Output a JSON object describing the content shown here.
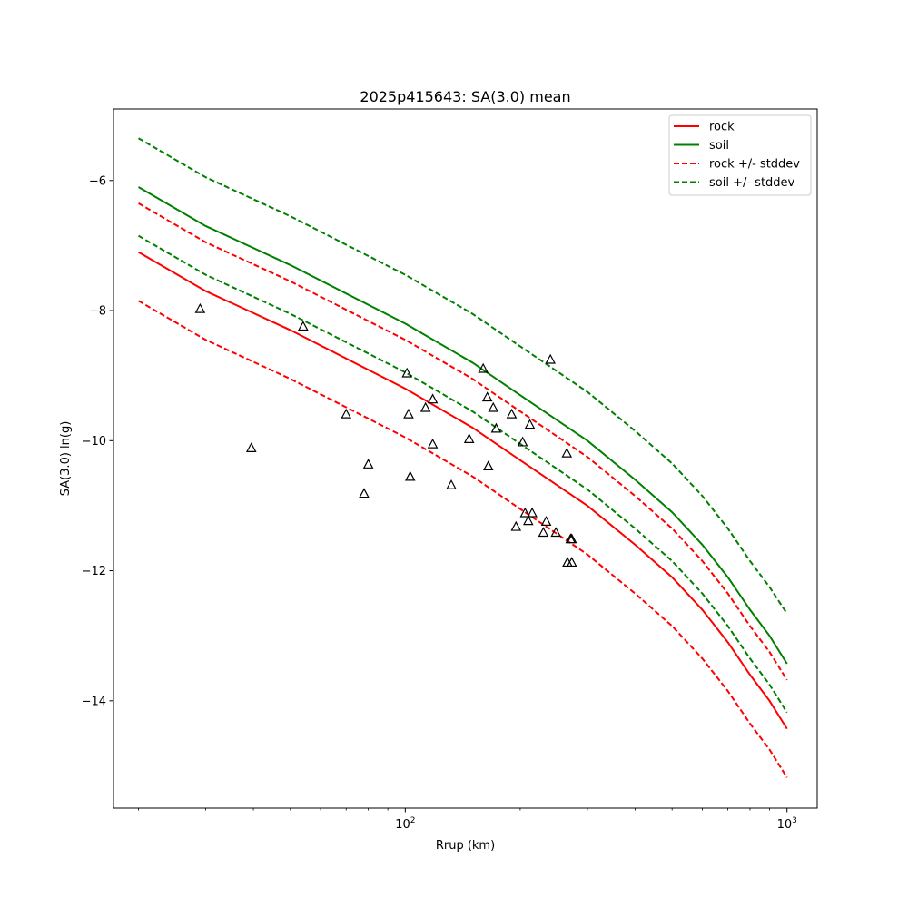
{
  "chart_data": {
    "type": "line",
    "title": "2025p415643: SA(3.0) mean",
    "xlabel": "Rrup (km)",
    "ylabel": "SA(3.0) ln(g)",
    "xscale": "log",
    "xlim": [
      17.2,
      1200
    ],
    "ylim": [
      -15.65,
      -4.9
    ],
    "x_major_ticks": [
      {
        "value": 100,
        "base": "10",
        "exp": "2"
      },
      {
        "value": 1000,
        "base": "10",
        "exp": "3"
      }
    ],
    "x_minor_ticks": [
      20,
      30,
      40,
      50,
      60,
      70,
      80,
      90,
      200,
      300,
      400,
      500,
      600,
      700,
      800,
      900
    ],
    "y_ticks": [
      {
        "value": -14,
        "label": "−14"
      },
      {
        "value": -12,
        "label": "−12"
      },
      {
        "value": -10,
        "label": "−10"
      },
      {
        "value": -8,
        "label": "−8"
      },
      {
        "value": -6,
        "label": "−6"
      }
    ],
    "grid": false,
    "legend_position": "top-right",
    "series": [
      {
        "name": "rock",
        "style": "solid",
        "color": "#ff0000",
        "x": [
          20,
          30,
          50,
          100,
          150,
          200,
          300,
          400,
          500,
          600,
          700,
          800,
          900,
          1000
        ],
        "y": [
          -7.1,
          -7.7,
          -8.3,
          -9.2,
          -9.8,
          -10.3,
          -11.0,
          -11.6,
          -12.1,
          -12.6,
          -13.1,
          -13.6,
          -14.0,
          -14.43
        ]
      },
      {
        "name": "soil",
        "style": "solid",
        "color": "#008000",
        "x": [
          20,
          30,
          50,
          100,
          150,
          200,
          300,
          400,
          500,
          600,
          700,
          800,
          900,
          1000
        ],
        "y": [
          -6.1,
          -6.7,
          -7.3,
          -8.2,
          -8.8,
          -9.3,
          -10.0,
          -10.6,
          -11.1,
          -11.6,
          -12.1,
          -12.6,
          -13.0,
          -13.43
        ]
      },
      {
        "name": "rock +/- stddev",
        "style": "dashed",
        "color": "#ff0000",
        "x": [
          20,
          30,
          50,
          100,
          150,
          200,
          300,
          400,
          500,
          600,
          700,
          800,
          900,
          1000
        ],
        "y": [
          -6.35,
          -6.95,
          -7.55,
          -8.45,
          -9.05,
          -9.55,
          -10.25,
          -10.85,
          -11.35,
          -11.85,
          -12.35,
          -12.85,
          -13.25,
          -13.68
        ]
      },
      {
        "name": "",
        "style": "dashed",
        "color": "#ff0000",
        "x": [
          20,
          30,
          50,
          100,
          150,
          200,
          300,
          400,
          500,
          600,
          700,
          800,
          900,
          1000
        ],
        "y": [
          -7.85,
          -8.45,
          -9.05,
          -9.95,
          -10.55,
          -11.05,
          -11.75,
          -12.35,
          -12.85,
          -13.35,
          -13.85,
          -14.35,
          -14.75,
          -15.18
        ]
      },
      {
        "name": "soil +/- stddev",
        "style": "dashed",
        "color": "#008000",
        "x": [
          20,
          30,
          50,
          100,
          150,
          200,
          300,
          400,
          500,
          600,
          700,
          800,
          900,
          1000
        ],
        "y": [
          -5.35,
          -5.95,
          -6.55,
          -7.45,
          -8.05,
          -8.55,
          -9.25,
          -9.85,
          -10.35,
          -10.85,
          -11.35,
          -11.85,
          -12.25,
          -12.66
        ]
      },
      {
        "name": "",
        "style": "dashed",
        "color": "#008000",
        "x": [
          20,
          30,
          50,
          100,
          150,
          200,
          300,
          400,
          500,
          600,
          700,
          800,
          900,
          1000
        ],
        "y": [
          -6.85,
          -7.45,
          -8.05,
          -8.95,
          -9.55,
          -10.05,
          -10.75,
          -11.35,
          -11.85,
          -12.35,
          -12.85,
          -13.35,
          -13.75,
          -14.18
        ]
      }
    ],
    "legend": [
      {
        "label": "rock",
        "style": "solid",
        "color": "#ff0000"
      },
      {
        "label": "soil",
        "style": "solid",
        "color": "#008000"
      },
      {
        "label": "rock +/- stddev",
        "style": "dashed",
        "color": "#ff0000"
      },
      {
        "label": "soil +/- stddev",
        "style": "dashed",
        "color": "#008000"
      }
    ],
    "observations": {
      "marker": "triangle",
      "x": [
        29,
        39.5,
        54,
        70,
        78,
        80,
        101,
        102,
        103,
        113,
        118,
        118,
        132,
        147,
        160,
        164,
        165,
        170,
        173,
        190,
        195,
        203,
        206,
        210,
        212,
        215,
        230,
        234,
        240,
        248,
        265,
        266,
        271,
        273,
        273
      ],
      "y": [
        -7.98,
        -10.12,
        -8.25,
        -9.6,
        -10.82,
        -10.37,
        -8.97,
        -9.6,
        -10.56,
        -9.5,
        -9.37,
        -10.06,
        -10.69,
        -9.98,
        -8.9,
        -9.34,
        -10.4,
        -9.5,
        -9.82,
        -9.6,
        -11.33,
        -10.03,
        -11.12,
        -11.24,
        -9.76,
        -11.12,
        -11.42,
        -11.25,
        -8.76,
        -11.42,
        -10.2,
        -11.88,
        -11.52,
        -11.52,
        -11.88
      ]
    }
  }
}
